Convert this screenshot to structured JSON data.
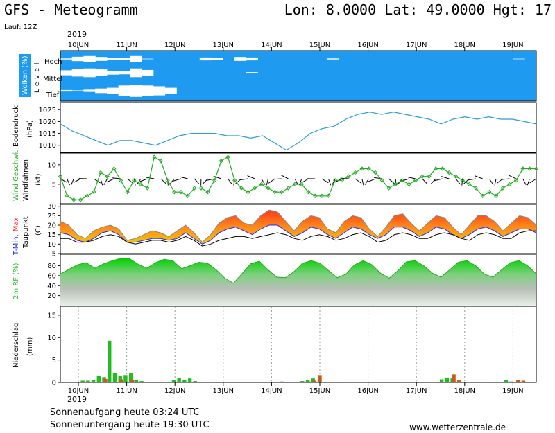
{
  "header": {
    "title": "GFS - Meteogramm",
    "location": "Lon: 8.0000  Lat: 49.0000  Hgt: 17",
    "run": "Lauf: 12Z",
    "year_top": "2019",
    "year_bottom": "2019"
  },
  "footer": {
    "sunrise": "Sonnenaufgang heute 03:24 UTC",
    "sunset": "Sonnenuntergang heute 19:30 UTC",
    "website": "www.wetterzentrale.de"
  },
  "chart_data": {
    "type": "meteogram",
    "days": [
      "10JUN",
      "11JUN",
      "12JUN",
      "13JUN",
      "14JUN",
      "15JUN",
      "16JUN",
      "17JUN",
      "18JUN",
      "19JUN"
    ],
    "colors": {
      "clouds": "#1e9bf0",
      "pressure": "#2a9bd8",
      "wind": "#22aa22",
      "rh": "#22cc22",
      "precip_conv": "#22bb22",
      "precip_large": "#c85a14",
      "dewpoint": "#000000"
    },
    "panels": {
      "clouds": {
        "label": "Wolken (%)",
        "side_label": "L e v e l",
        "levels": [
          "Hoch",
          "Mittel",
          "Tief"
        ],
        "hoch": [
          90,
          55,
          40,
          60,
          85,
          80,
          40,
          95,
          100,
          100,
          100,
          100,
          70,
          80,
          100,
          60,
          70,
          100,
          100,
          100,
          100,
          100,
          100,
          90,
          100,
          100,
          100,
          100,
          100,
          100,
          100,
          100,
          100,
          100,
          100,
          100,
          100,
          100,
          100,
          95,
          100
        ],
        "mittel": [
          60,
          40,
          30,
          45,
          70,
          75,
          30,
          55,
          100,
          100,
          100,
          100,
          100,
          100,
          100,
          100,
          90,
          100,
          100,
          100,
          100,
          100,
          100,
          100,
          100,
          100,
          100,
          100,
          100,
          100,
          100,
          100,
          100,
          100,
          100,
          100,
          100,
          100,
          100,
          100,
          100
        ],
        "tief": [
          90,
          95,
          85,
          70,
          60,
          30,
          20,
          30,
          40,
          60,
          100,
          100,
          100,
          100,
          100,
          100,
          100,
          100,
          100,
          100,
          100,
          100,
          100,
          100,
          100,
          100,
          100,
          100,
          100,
          100,
          100,
          100,
          100,
          100,
          100,
          100,
          100,
          100,
          100,
          100,
          100
        ]
      },
      "pressure": {
        "label": "Bodendruck",
        "unit": "(hPa)",
        "ticks": [
          "1010",
          "1015",
          "1020",
          "1025"
        ],
        "ylim": [
          1007,
          1028
        ],
        "values": [
          1019,
          1016,
          1014,
          1012,
          1010,
          1012,
          1012,
          1011,
          1010,
          1012,
          1014,
          1015,
          1015,
          1015,
          1014,
          1014,
          1013,
          1014,
          1011,
          1008,
          1011,
          1015,
          1017,
          1018,
          1021,
          1023,
          1024,
          1023,
          1024,
          1023,
          1022,
          1021,
          1019,
          1021,
          1022,
          1021,
          1022,
          1021,
          1021,
          1020,
          1019
        ]
      },
      "wind": {
        "label": "Wind Geschwi.",
        "label2": "Windfahnen",
        "unit": "(kt)",
        "ticks": [
          "5",
          "10"
        ],
        "ylim": [
          0,
          13
        ],
        "values": [
          7,
          2,
          1,
          1,
          2,
          3,
          8,
          7,
          9,
          6,
          3,
          6,
          5,
          4,
          12,
          11,
          6,
          3,
          3,
          2,
          4,
          4,
          3,
          6,
          11,
          12,
          6,
          4,
          3,
          4,
          5,
          4,
          3,
          3,
          4,
          5,
          5,
          3,
          2,
          2,
          2,
          6,
          6,
          7,
          8,
          9,
          9,
          8,
          6,
          4,
          5,
          6,
          5,
          6,
          7,
          7,
          9,
          9,
          8,
          7,
          6,
          5,
          4,
          2,
          3,
          2,
          4,
          5,
          6,
          9,
          9,
          9
        ]
      },
      "temperature": {
        "label_min": "T-Min,",
        "label_max": "Max",
        "label2": "Taupunkt",
        "unit": "(C)",
        "ticks": [
          "5",
          "10",
          "15",
          "20",
          "25",
          "30"
        ],
        "ylim": [
          5,
          31
        ],
        "tmax": [
          22,
          20,
          15,
          13,
          17,
          19,
          20,
          18,
          12,
          13,
          15,
          17,
          16,
          14,
          17,
          20,
          16,
          11,
          15,
          21,
          24,
          25,
          21,
          20,
          25,
          28,
          27,
          22,
          17,
          22,
          25,
          24,
          18,
          16,
          22,
          25,
          24,
          18,
          14,
          19,
          25,
          26,
          21,
          17,
          21,
          25,
          24,
          19,
          15,
          20,
          25,
          25,
          22,
          17,
          21,
          25,
          24,
          20
        ],
        "tmin": [
          16,
          15,
          12,
          11,
          13,
          16,
          17,
          15,
          11,
          11,
          12,
          13,
          13,
          12,
          13,
          16,
          13,
          10,
          12,
          16,
          18,
          19,
          17,
          15,
          18,
          20,
          20,
          17,
          14,
          16,
          19,
          18,
          15,
          13,
          16,
          19,
          18,
          15,
          13,
          15,
          19,
          19,
          17,
          14,
          16,
          19,
          18,
          15,
          13,
          15,
          18,
          19,
          17,
          14,
          16,
          18,
          18,
          16
        ],
        "dewpoint": [
          13,
          13,
          11,
          11,
          12,
          14,
          15,
          14,
          11,
          10,
          11,
          12,
          12,
          11,
          12,
          14,
          12,
          9,
          10,
          12,
          13,
          14,
          14,
          13,
          14,
          15,
          16,
          15,
          13,
          12,
          14,
          15,
          14,
          12,
          13,
          15,
          16,
          14,
          11,
          12,
          15,
          16,
          15,
          13,
          13,
          15,
          16,
          15,
          13,
          12,
          15,
          16,
          15,
          13,
          13,
          16,
          17,
          17
        ]
      },
      "humidity": {
        "label": "2m RF (%)",
        "ticks": [
          "20",
          "40",
          "60",
          "80"
        ],
        "ylim": [
          0,
          103
        ],
        "values": [
          63,
          73,
          82,
          86,
          75,
          84,
          90,
          95,
          94,
          83,
          75,
          86,
          93,
          90,
          74,
          80,
          87,
          85,
          72,
          55,
          45,
          64,
          84,
          89,
          72,
          57,
          56,
          68,
          85,
          90,
          85,
          70,
          56,
          63,
          82,
          90,
          82,
          65,
          55,
          70,
          88,
          90,
          80,
          65,
          57,
          72,
          87,
          90,
          80,
          63,
          57,
          72,
          86,
          90,
          80,
          64
        ]
      },
      "precipitation": {
        "label": "Niederschlag",
        "unit": "(mm)",
        "ticks": [
          "0",
          "5",
          "10",
          "15"
        ],
        "ylim": [
          0,
          17
        ],
        "convective": [
          0.1,
          0.1,
          0.4,
          0.4,
          0.6,
          1.4,
          1.2,
          9.3,
          2.1,
          1.4,
          1.5,
          2.0,
          0.6,
          0.3,
          0.1,
          0,
          0,
          0,
          0,
          0.5,
          1.1,
          0.5,
          0.9,
          0.3,
          0,
          0,
          0,
          0,
          0,
          0,
          0,
          0,
          0,
          0,
          0,
          0,
          0,
          0.1,
          0,
          0,
          0,
          0,
          0,
          0.3,
          0.5,
          0.9,
          0,
          0,
          0,
          0,
          0,
          0,
          0,
          0,
          0,
          0,
          0,
          0,
          0,
          0,
          0,
          0,
          0,
          0,
          0,
          0,
          0,
          0,
          0,
          0.7,
          1.1,
          1.0,
          0,
          0,
          0,
          0,
          0,
          0,
          0,
          0,
          0,
          0.5,
          0.2,
          0,
          0,
          0,
          0
        ],
        "large_scale": [
          0,
          0,
          0,
          0,
          0,
          0,
          0.8,
          0,
          0,
          0.7,
          0,
          0.6,
          0,
          0,
          0,
          0,
          0,
          0,
          0,
          0,
          0,
          0,
          0,
          0,
          0,
          0,
          0,
          0,
          0,
          0,
          0,
          0,
          0,
          0,
          0,
          0,
          0,
          0,
          0,
          0.2,
          0,
          0,
          0,
          0,
          0.2,
          0.4,
          1.5,
          0,
          0,
          0,
          0,
          0,
          0,
          0,
          0,
          0,
          0,
          0,
          0,
          0,
          0,
          0,
          0,
          0,
          0,
          0,
          0,
          0,
          0,
          0,
          0,
          1.8,
          0.5,
          0,
          0,
          0,
          0,
          0,
          0,
          0,
          0,
          0,
          0,
          0.6,
          0.4,
          0,
          0
        ]
      }
    }
  }
}
